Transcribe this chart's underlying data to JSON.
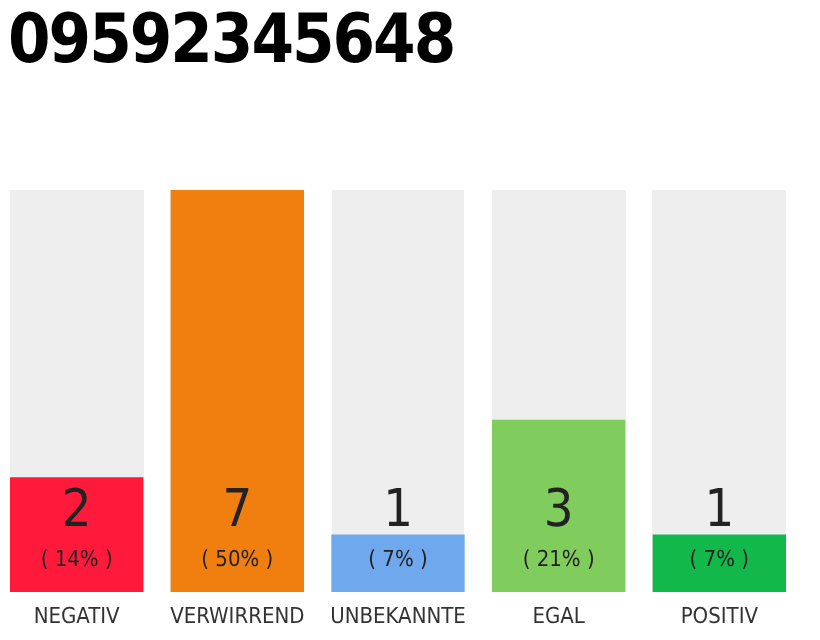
{
  "chart_data": {
    "type": "bar",
    "title": "09592345648",
    "categories": [
      "NEGATIV",
      "VERWIRREND",
      "UNBEKANNTE",
      "EGAL",
      "POSITIV"
    ],
    "values": [
      2,
      7,
      1,
      3,
      1
    ],
    "colors": [
      "#ff1a3c",
      "#f07f0f",
      "#6fa8ec",
      "#80cc5c",
      "#12b84a"
    ],
    "data_labels": true,
    "annotations": [
      "( 14% )",
      "( 50% )",
      "( 7% )",
      "( 21% )",
      "( 7% )"
    ],
    "grid": false
  }
}
